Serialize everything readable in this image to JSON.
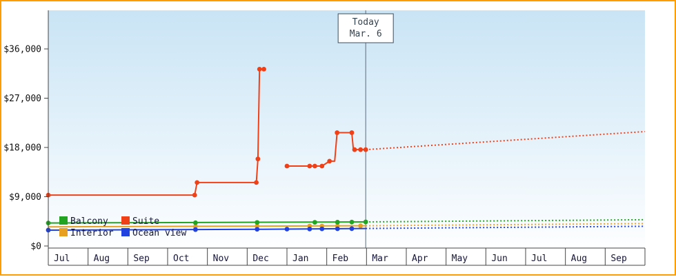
{
  "frame": {
    "border_color": "#ff9c00",
    "background": "#ffffff"
  },
  "colors": {
    "axis": "#444444",
    "tick_text": "#111111",
    "month_text": "#15153a",
    "legend_text": "#15153a",
    "today_line": "#5a6b7a",
    "today_box_border": "#3c4c5c",
    "today_box_fill": "#ffffff",
    "today_text": "#33424f",
    "plot_top": "#c9e4f5",
    "plot_bottom": "#fdfeff"
  },
  "legend": [
    {
      "name": "Balcony",
      "color": "#22a322"
    },
    {
      "name": "Suite",
      "color": "#f04018"
    },
    {
      "name": "Interior",
      "color": "#e8a020"
    },
    {
      "name": "Ocean view",
      "color": "#2142de"
    }
  ],
  "chart_data": {
    "type": "line",
    "title": "",
    "currency": "USD",
    "x_axis": {
      "months": [
        "Jul",
        "Aug",
        "Sep",
        "Oct",
        "Nov",
        "Dec",
        "Jan",
        "Feb",
        "Mar",
        "Apr",
        "May",
        "Jun",
        "Jul",
        "Aug",
        "Sep"
      ],
      "range_months": [
        0,
        15
      ]
    },
    "y_axis": {
      "range": [
        0,
        40000
      ],
      "ticks": [
        0,
        9000,
        18000,
        27000,
        36000
      ],
      "tick_labels": [
        "$0",
        "$9,000",
        "$18,000",
        "$27,000",
        "$36,000"
      ]
    },
    "today": {
      "label": "Today",
      "date": "Mar. 6",
      "x": 7.98
    },
    "grid": false,
    "legend_position": "bottom-left-inside",
    "series": [
      {
        "name": "Interior",
        "color": "#e8a020",
        "solid_segments": [
          [
            [
              0,
              3500
            ],
            [
              7.98,
              3700
            ]
          ]
        ],
        "dotted_segments": [
          [
            [
              7.98,
              3700
            ],
            [
              15,
              4100
            ]
          ]
        ],
        "markers": [
          [
            3.7,
            3560
          ],
          [
            5.25,
            3610
          ],
          [
            6.57,
            3640
          ],
          [
            6.88,
            3650
          ],
          [
            7.27,
            3660
          ],
          [
            7.85,
            3690
          ]
        ]
      },
      {
        "name": "Ocean view",
        "color": "#2142de",
        "solid_segments": [
          [
            [
              0,
              2900
            ],
            [
              5.25,
              3050
            ],
            [
              7.98,
              3200
            ]
          ]
        ],
        "dotted_segments": [
          [
            [
              7.98,
              3200
            ],
            [
              15,
              3600
            ]
          ]
        ],
        "markers": [
          [
            0,
            2900
          ],
          [
            3.7,
            3000
          ],
          [
            5.25,
            3050
          ],
          [
            6.0,
            3080
          ],
          [
            6.57,
            3110
          ],
          [
            6.88,
            3130
          ],
          [
            7.27,
            3150
          ],
          [
            7.63,
            3170
          ]
        ]
      },
      {
        "name": "Balcony",
        "color": "#22a322",
        "solid_segments": [
          [
            [
              0,
              4200
            ],
            [
              7.98,
              4400
            ]
          ]
        ],
        "dotted_segments": [
          [
            [
              7.98,
              4400
            ],
            [
              15,
              4800
            ]
          ]
        ],
        "markers": [
          [
            0,
            4200
          ],
          [
            3.7,
            4250
          ],
          [
            5.25,
            4300
          ],
          [
            6.7,
            4330
          ],
          [
            7.27,
            4350
          ],
          [
            7.63,
            4370
          ],
          [
            7.98,
            4400
          ]
        ]
      },
      {
        "name": "Suite",
        "color": "#f04018",
        "solid_segments": [
          [
            [
              0,
              9300
            ],
            [
              3.68,
              9300
            ],
            [
              3.74,
              11600
            ],
            [
              5.23,
              11600
            ],
            [
              5.27,
              15900
            ],
            [
              5.31,
              32300
            ],
            [
              5.42,
              32300
            ]
          ],
          [
            [
              6.0,
              14600
            ],
            [
              6.88,
              14600
            ],
            [
              7.07,
              15500
            ],
            [
              7.2,
              15500
            ],
            [
              7.26,
              20700
            ],
            [
              7.63,
              20700
            ],
            [
              7.67,
              17600
            ],
            [
              7.98,
              17600
            ]
          ]
        ],
        "dotted_segments": [
          [
            [
              7.98,
              17600
            ],
            [
              15,
              20900
            ]
          ]
        ],
        "markers": [
          [
            0,
            9300
          ],
          [
            3.68,
            9300
          ],
          [
            3.74,
            11600
          ],
          [
            5.23,
            11600
          ],
          [
            5.27,
            15900
          ],
          [
            5.31,
            32300
          ],
          [
            5.42,
            32300
          ],
          [
            6.0,
            14600
          ],
          [
            6.57,
            14600
          ],
          [
            6.7,
            14600
          ],
          [
            6.88,
            14600
          ],
          [
            7.07,
            15500
          ],
          [
            7.26,
            20700
          ],
          [
            7.63,
            20700
          ],
          [
            7.7,
            17600
          ],
          [
            7.85,
            17600
          ],
          [
            7.98,
            17600
          ]
        ]
      }
    ]
  }
}
